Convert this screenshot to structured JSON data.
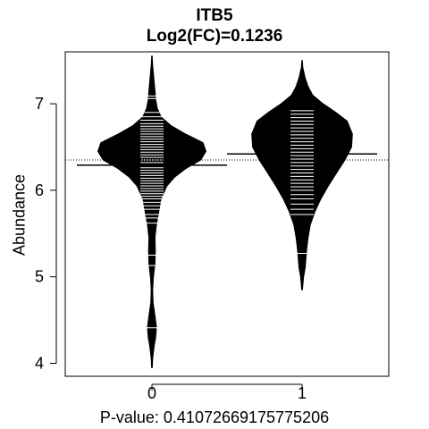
{
  "chart_data": {
    "type": "beanplot",
    "title": "ITB5",
    "subtitle": "Log2(FC)=0.1236",
    "ylabel": "Abundance",
    "xlabel": "P-value: 0.41072669175775206",
    "categories": [
      "0",
      "1"
    ],
    "y_ticks": [
      4,
      5,
      6,
      7
    ],
    "ylim": [
      3.85,
      7.6
    ],
    "overall_mean": 6.35,
    "groups": [
      {
        "name": "0",
        "mean": 6.29,
        "density": [
          [
            3.95,
            0.005
          ],
          [
            4.05,
            0.01
          ],
          [
            4.2,
            0.03
          ],
          [
            4.3,
            0.05
          ],
          [
            4.42,
            0.06
          ],
          [
            4.55,
            0.04
          ],
          [
            4.7,
            0.015
          ],
          [
            4.85,
            0.01
          ],
          [
            5.0,
            0.02
          ],
          [
            5.15,
            0.04
          ],
          [
            5.3,
            0.045
          ],
          [
            5.45,
            0.04
          ],
          [
            5.6,
            0.06
          ],
          [
            5.75,
            0.09
          ],
          [
            5.9,
            0.12
          ],
          [
            6.05,
            0.2
          ],
          [
            6.15,
            0.3
          ],
          [
            6.25,
            0.45
          ],
          [
            6.35,
            0.65
          ],
          [
            6.45,
            0.72
          ],
          [
            6.55,
            0.68
          ],
          [
            6.65,
            0.45
          ],
          [
            6.75,
            0.25
          ],
          [
            6.85,
            0.12
          ],
          [
            6.95,
            0.07
          ],
          [
            7.05,
            0.05
          ],
          [
            7.15,
            0.04
          ],
          [
            7.3,
            0.025
          ],
          [
            7.45,
            0.01
          ],
          [
            7.55,
            0.003
          ]
        ],
        "points": [
          4.41,
          5.13,
          5.25,
          5.62,
          5.68,
          5.72,
          5.78,
          5.82,
          5.86,
          5.9,
          5.93,
          5.96,
          5.99,
          6.02,
          6.05,
          6.08,
          6.11,
          6.14,
          6.17,
          6.2,
          6.23,
          6.26,
          6.29,
          6.32,
          6.35,
          6.38,
          6.41,
          6.44,
          6.47,
          6.5,
          6.53,
          6.56,
          6.59,
          6.62,
          6.65,
          6.68,
          6.71,
          6.74,
          6.77,
          6.81,
          6.85,
          6.9,
          7.06,
          7.09
        ]
      },
      {
        "name": "1",
        "mean": 6.42,
        "density": [
          [
            4.85,
            0.005
          ],
          [
            5.0,
            0.02
          ],
          [
            5.1,
            0.04
          ],
          [
            5.2,
            0.05
          ],
          [
            5.3,
            0.06
          ],
          [
            5.45,
            0.08
          ],
          [
            5.6,
            0.11
          ],
          [
            5.75,
            0.17
          ],
          [
            5.9,
            0.25
          ],
          [
            6.05,
            0.35
          ],
          [
            6.2,
            0.46
          ],
          [
            6.35,
            0.57
          ],
          [
            6.5,
            0.66
          ],
          [
            6.65,
            0.67
          ],
          [
            6.8,
            0.6
          ],
          [
            6.9,
            0.45
          ],
          [
            7.0,
            0.28
          ],
          [
            7.1,
            0.14
          ],
          [
            7.2,
            0.08
          ],
          [
            7.3,
            0.04
          ],
          [
            7.42,
            0.01
          ],
          [
            7.5,
            0.003
          ]
        ],
        "points": [
          5.27,
          5.72,
          5.78,
          5.84,
          5.9,
          5.95,
          6.0,
          6.04,
          6.08,
          6.12,
          6.16,
          6.2,
          6.24,
          6.28,
          6.32,
          6.36,
          6.4,
          6.44,
          6.48,
          6.52,
          6.56,
          6.6,
          6.64,
          6.68,
          6.72,
          6.76,
          6.8,
          6.84,
          6.88,
          6.92
        ]
      }
    ]
  }
}
